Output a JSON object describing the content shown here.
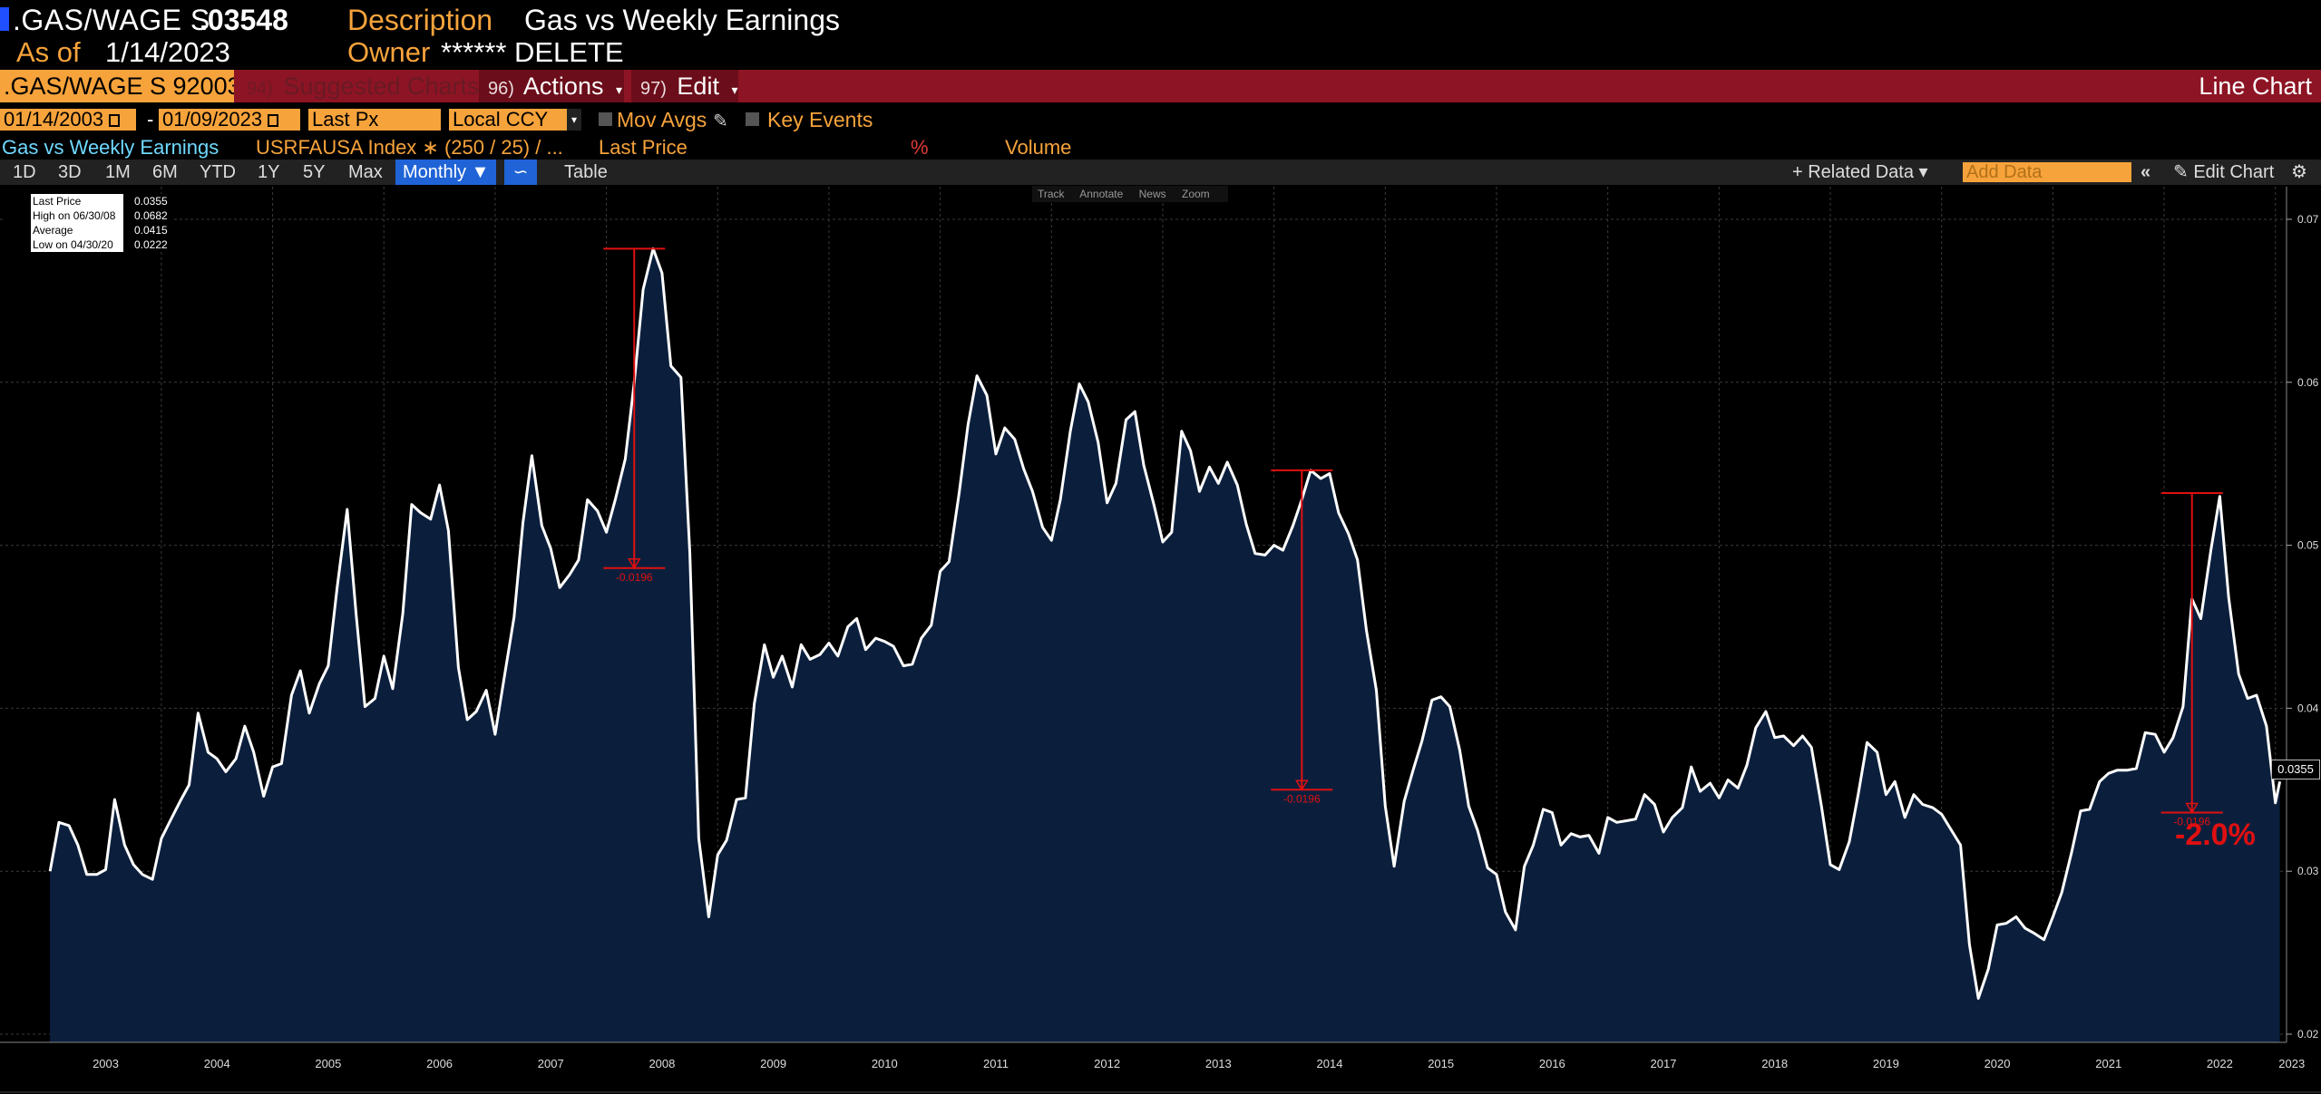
{
  "header": {
    "ticker": ".GAS/WAGE S",
    "last_value": ".03548",
    "description_label": "Description",
    "description": "Gas vs Weekly Earnings",
    "as_of_label": "As of",
    "as_of_date": "1/14/2023",
    "owner_label": "Owner",
    "owner": "****** DELETE"
  },
  "toolbar_top": {
    "security": ".GAS/WAGE S 92003",
    "suggested_num": "94)",
    "suggested": "Suggested Charts",
    "actions_num": "96)",
    "actions": "Actions",
    "edit_num": "97)",
    "edit": "Edit",
    "chart_type": "Line Chart"
  },
  "settings": {
    "start_date": "01/14/2003",
    "end_date": "01/09/2023",
    "separator": "-",
    "price_field": "Last Px",
    "currency": "Local CCY",
    "mov_avgs": "Mov Avgs",
    "key_events": "Key Events"
  },
  "legend_row": {
    "series": "Gas vs Weekly Earnings",
    "index": "USRFAUSA Index ∗ (250 / 25) / ...",
    "field": "Last Price",
    "pct": "%",
    "volume": "Volume"
  },
  "periods": [
    "1D",
    "3D",
    "1M",
    "6M",
    "YTD",
    "1Y",
    "5Y",
    "Max"
  ],
  "toolbar": {
    "frequency": "Monthly ▼",
    "table": "Table",
    "related_data": "+ Related Data ▾",
    "add_data_placeholder": "Add Data",
    "edit_chart": "Edit Chart"
  },
  "chart_tools": [
    "Track",
    "Annotate",
    "News",
    "Zoom"
  ],
  "stats": [
    {
      "label": "Last Price",
      "value": "0.0355"
    },
    {
      "label": "High on 06/30/08",
      "value": "0.0682"
    },
    {
      "label": "Average",
      "value": "0.0415"
    },
    {
      "label": "Low on 04/30/20",
      "value": "0.0222"
    }
  ],
  "annotations": {
    "drop_label": "-0.0196",
    "big_pct": "-2.0%",
    "last_label": "0.0355"
  },
  "colors": {
    "line": "#ffffff",
    "area": "#0b1f3d",
    "accent_orange": "#f7a33b",
    "bar_red": "#8d1424",
    "annotation_red": "#e01010"
  },
  "chart_data": {
    "type": "area",
    "title": "",
    "xlabel": "",
    "ylabel": "",
    "ylim": [
      0.0195,
      0.072
    ],
    "x_start": 2003.0,
    "x_end": 2023.0,
    "x_ticks": [
      "2003",
      "2004",
      "2005",
      "2006",
      "2007",
      "2008",
      "2009",
      "2010",
      "2011",
      "2012",
      "2013",
      "2014",
      "2015",
      "2016",
      "2017",
      "2018",
      "2019",
      "2020",
      "2021",
      "2022",
      "2023"
    ],
    "y_ticks": [
      0.02,
      0.03,
      0.04,
      0.05,
      0.06,
      0.07
    ],
    "y_tick_labels": [
      "0.02",
      "0.03",
      "0.04",
      "0.05",
      "0.06",
      "0.07"
    ],
    "series": [
      {
        "values": [
          [
            2003.0,
            0.03
          ],
          [
            2003.08,
            0.033
          ],
          [
            2003.17,
            0.0328
          ],
          [
            2003.25,
            0.0316
          ],
          [
            2003.33,
            0.0298
          ],
          [
            2003.42,
            0.0298
          ],
          [
            2003.5,
            0.0301
          ],
          [
            2003.58,
            0.0344
          ],
          [
            2003.67,
            0.0316
          ],
          [
            2003.75,
            0.0304
          ],
          [
            2003.83,
            0.0298
          ],
          [
            2003.92,
            0.0295
          ],
          [
            2004.0,
            0.032
          ],
          [
            2004.08,
            0.0331
          ],
          [
            2004.17,
            0.0343
          ],
          [
            2004.25,
            0.0353
          ],
          [
            2004.33,
            0.0397
          ],
          [
            2004.42,
            0.0373
          ],
          [
            2004.5,
            0.0369
          ],
          [
            2004.58,
            0.0361
          ],
          [
            2004.67,
            0.0369
          ],
          [
            2004.75,
            0.0389
          ],
          [
            2004.83,
            0.0373
          ],
          [
            2004.92,
            0.0346
          ],
          [
            2005.0,
            0.0364
          ],
          [
            2005.08,
            0.0366
          ],
          [
            2005.17,
            0.0408
          ],
          [
            2005.25,
            0.0423
          ],
          [
            2005.33,
            0.0397
          ],
          [
            2005.42,
            0.0415
          ],
          [
            2005.5,
            0.0426
          ],
          [
            2005.58,
            0.0474
          ],
          [
            2005.67,
            0.0522
          ],
          [
            2005.75,
            0.0458
          ],
          [
            2005.83,
            0.0401
          ],
          [
            2005.92,
            0.0406
          ],
          [
            2006.0,
            0.0432
          ],
          [
            2006.08,
            0.0412
          ],
          [
            2006.17,
            0.0458
          ],
          [
            2006.25,
            0.0525
          ],
          [
            2006.33,
            0.052
          ],
          [
            2006.42,
            0.0516
          ],
          [
            2006.5,
            0.0537
          ],
          [
            2006.58,
            0.0509
          ],
          [
            2006.67,
            0.0425
          ],
          [
            2006.75,
            0.0393
          ],
          [
            2006.83,
            0.0398
          ],
          [
            2006.92,
            0.0411
          ],
          [
            2007.0,
            0.0384
          ],
          [
            2007.08,
            0.0418
          ],
          [
            2007.17,
            0.0456
          ],
          [
            2007.25,
            0.0514
          ],
          [
            2007.33,
            0.0555
          ],
          [
            2007.42,
            0.0512
          ],
          [
            2007.5,
            0.0498
          ],
          [
            2007.58,
            0.0474
          ],
          [
            2007.67,
            0.0482
          ],
          [
            2007.75,
            0.0491
          ],
          [
            2007.83,
            0.0528
          ],
          [
            2007.92,
            0.0521
          ],
          [
            2008.0,
            0.0508
          ],
          [
            2008.08,
            0.0528
          ],
          [
            2008.17,
            0.0553
          ],
          [
            2008.25,
            0.06
          ],
          [
            2008.33,
            0.0657
          ],
          [
            2008.42,
            0.0682
          ],
          [
            2008.5,
            0.0667
          ],
          [
            2008.58,
            0.061
          ],
          [
            2008.67,
            0.0603
          ],
          [
            2008.75,
            0.0495
          ],
          [
            2008.83,
            0.032
          ],
          [
            2008.92,
            0.0272
          ],
          [
            2009.0,
            0.031
          ],
          [
            2009.08,
            0.0319
          ],
          [
            2009.17,
            0.0344
          ],
          [
            2009.25,
            0.0345
          ],
          [
            2009.33,
            0.0403
          ],
          [
            2009.42,
            0.0439
          ],
          [
            2009.5,
            0.0419
          ],
          [
            2009.58,
            0.0432
          ],
          [
            2009.67,
            0.0413
          ],
          [
            2009.75,
            0.0439
          ],
          [
            2009.83,
            0.043
          ],
          [
            2009.92,
            0.0433
          ],
          [
            2010.0,
            0.044
          ],
          [
            2010.08,
            0.0432
          ],
          [
            2010.17,
            0.045
          ],
          [
            2010.25,
            0.0455
          ],
          [
            2010.33,
            0.0436
          ],
          [
            2010.42,
            0.0443
          ],
          [
            2010.5,
            0.0441
          ],
          [
            2010.58,
            0.0438
          ],
          [
            2010.67,
            0.0426
          ],
          [
            2010.75,
            0.0427
          ],
          [
            2010.83,
            0.0443
          ],
          [
            2010.92,
            0.0451
          ],
          [
            2011.0,
            0.0484
          ],
          [
            2011.08,
            0.049
          ],
          [
            2011.17,
            0.0532
          ],
          [
            2011.25,
            0.0574
          ],
          [
            2011.33,
            0.0604
          ],
          [
            2011.42,
            0.0592
          ],
          [
            2011.5,
            0.0556
          ],
          [
            2011.58,
            0.0572
          ],
          [
            2011.67,
            0.0565
          ],
          [
            2011.75,
            0.0547
          ],
          [
            2011.83,
            0.0533
          ],
          [
            2011.92,
            0.0511
          ],
          [
            2012.0,
            0.0503
          ],
          [
            2012.08,
            0.0528
          ],
          [
            2012.17,
            0.057
          ],
          [
            2012.25,
            0.0599
          ],
          [
            2012.33,
            0.0588
          ],
          [
            2012.42,
            0.0563
          ],
          [
            2012.5,
            0.0526
          ],
          [
            2012.58,
            0.0538
          ],
          [
            2012.67,
            0.0577
          ],
          [
            2012.75,
            0.0582
          ],
          [
            2012.83,
            0.0549
          ],
          [
            2012.92,
            0.0525
          ],
          [
            2013.0,
            0.0502
          ],
          [
            2013.08,
            0.0508
          ],
          [
            2013.17,
            0.057
          ],
          [
            2013.25,
            0.0558
          ],
          [
            2013.33,
            0.0533
          ],
          [
            2013.42,
            0.0548
          ],
          [
            2013.5,
            0.0538
          ],
          [
            2013.58,
            0.0551
          ],
          [
            2013.67,
            0.0537
          ],
          [
            2013.75,
            0.0513
          ],
          [
            2013.83,
            0.0495
          ],
          [
            2013.92,
            0.0494
          ],
          [
            2014.0,
            0.05
          ],
          [
            2014.08,
            0.0497
          ],
          [
            2014.17,
            0.0512
          ],
          [
            2014.25,
            0.0528
          ],
          [
            2014.33,
            0.0546
          ],
          [
            2014.42,
            0.0541
          ],
          [
            2014.5,
            0.0544
          ],
          [
            2014.58,
            0.052
          ],
          [
            2014.67,
            0.0507
          ],
          [
            2014.75,
            0.0491
          ],
          [
            2014.83,
            0.0448
          ],
          [
            2014.92,
            0.0411
          ],
          [
            2015.0,
            0.034
          ],
          [
            2015.08,
            0.0303
          ],
          [
            2015.17,
            0.0343
          ],
          [
            2015.25,
            0.0362
          ],
          [
            2015.33,
            0.038
          ],
          [
            2015.42,
            0.0405
          ],
          [
            2015.5,
            0.0407
          ],
          [
            2015.58,
            0.0401
          ],
          [
            2015.67,
            0.0374
          ],
          [
            2015.75,
            0.034
          ],
          [
            2015.83,
            0.0325
          ],
          [
            2015.92,
            0.0302
          ],
          [
            2016.0,
            0.0298
          ],
          [
            2016.08,
            0.0275
          ],
          [
            2016.17,
            0.0264
          ],
          [
            2016.25,
            0.0303
          ],
          [
            2016.33,
            0.0316
          ],
          [
            2016.42,
            0.0338
          ],
          [
            2016.5,
            0.0336
          ],
          [
            2016.58,
            0.0316
          ],
          [
            2016.67,
            0.0323
          ],
          [
            2016.75,
            0.0321
          ],
          [
            2016.83,
            0.0322
          ],
          [
            2016.92,
            0.0311
          ],
          [
            2017.0,
            0.0333
          ],
          [
            2017.08,
            0.033
          ],
          [
            2017.17,
            0.0331
          ],
          [
            2017.25,
            0.0332
          ],
          [
            2017.33,
            0.0347
          ],
          [
            2017.42,
            0.0341
          ],
          [
            2017.5,
            0.0324
          ],
          [
            2017.58,
            0.0333
          ],
          [
            2017.67,
            0.0339
          ],
          [
            2017.75,
            0.0364
          ],
          [
            2017.83,
            0.0349
          ],
          [
            2017.92,
            0.0354
          ],
          [
            2018.0,
            0.0345
          ],
          [
            2018.08,
            0.0356
          ],
          [
            2018.17,
            0.0351
          ],
          [
            2018.25,
            0.0365
          ],
          [
            2018.33,
            0.0388
          ],
          [
            2018.42,
            0.0398
          ],
          [
            2018.5,
            0.0382
          ],
          [
            2018.58,
            0.0383
          ],
          [
            2018.67,
            0.0377
          ],
          [
            2018.75,
            0.0383
          ],
          [
            2018.83,
            0.0376
          ],
          [
            2018.92,
            0.034
          ],
          [
            2019.0,
            0.0304
          ],
          [
            2019.08,
            0.0301
          ],
          [
            2019.17,
            0.0318
          ],
          [
            2019.25,
            0.0347
          ],
          [
            2019.33,
            0.0379
          ],
          [
            2019.42,
            0.0373
          ],
          [
            2019.5,
            0.0347
          ],
          [
            2019.58,
            0.0355
          ],
          [
            2019.67,
            0.0333
          ],
          [
            2019.75,
            0.0347
          ],
          [
            2019.83,
            0.0341
          ],
          [
            2019.92,
            0.0339
          ],
          [
            2020.0,
            0.0335
          ],
          [
            2020.08,
            0.0326
          ],
          [
            2020.17,
            0.0316
          ],
          [
            2020.25,
            0.0255
          ],
          [
            2020.33,
            0.0222
          ],
          [
            2020.42,
            0.024
          ],
          [
            2020.5,
            0.0267
          ],
          [
            2020.58,
            0.0268
          ],
          [
            2020.67,
            0.0272
          ],
          [
            2020.75,
            0.0265
          ],
          [
            2020.83,
            0.0262
          ],
          [
            2020.92,
            0.0258
          ],
          [
            2021.0,
            0.0272
          ],
          [
            2021.08,
            0.0287
          ],
          [
            2021.17,
            0.0312
          ],
          [
            2021.25,
            0.0337
          ],
          [
            2021.33,
            0.0338
          ],
          [
            2021.42,
            0.0355
          ],
          [
            2021.5,
            0.036
          ],
          [
            2021.58,
            0.0362
          ],
          [
            2021.67,
            0.0362
          ],
          [
            2021.75,
            0.0363
          ],
          [
            2021.83,
            0.0385
          ],
          [
            2021.92,
            0.0384
          ],
          [
            2022.0,
            0.0373
          ],
          [
            2022.08,
            0.0382
          ],
          [
            2022.17,
            0.0401
          ],
          [
            2022.25,
            0.0467
          ],
          [
            2022.33,
            0.0455
          ],
          [
            2022.42,
            0.0497
          ],
          [
            2022.5,
            0.053
          ],
          [
            2022.58,
            0.0468
          ],
          [
            2022.67,
            0.0421
          ],
          [
            2022.75,
            0.0406
          ],
          [
            2022.83,
            0.0408
          ],
          [
            2022.92,
            0.0389
          ],
          [
            2023.0,
            0.0342
          ],
          [
            2023.04,
            0.0355
          ]
        ]
      }
    ],
    "annotations": [
      {
        "x": 2008.25,
        "y_high": 0.0682,
        "y_low": 0.0486,
        "label": "-0.0196"
      },
      {
        "x": 2014.25,
        "y_high": 0.0546,
        "y_low": 0.035,
        "label": "-0.0196"
      },
      {
        "x": 2022.25,
        "y_high": 0.0532,
        "y_low": 0.0336,
        "label": "-0.0196"
      }
    ]
  }
}
